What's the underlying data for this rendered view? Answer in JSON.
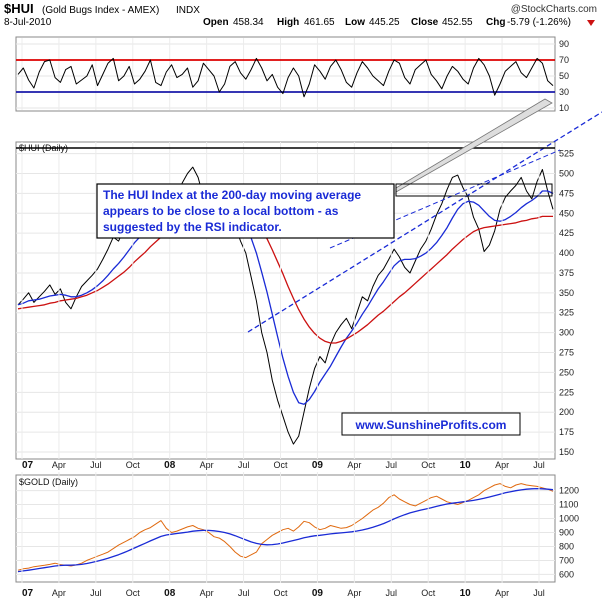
{
  "header": {
    "symbol": "$HUI",
    "name": "(Gold Bugs Index - AMEX)",
    "exchange": "INDX",
    "date": "8-Jul-2010",
    "open_label": "Open",
    "open": "458.34",
    "high_label": "High",
    "high": "461.65",
    "low_label": "Low",
    "low": "445.25",
    "close_label": "Close",
    "close": "452.55",
    "chg_label": "Chg",
    "chg": "-5.79 (-1.26%)",
    "watermark": "@StockCharts.com"
  },
  "annotation": {
    "lines": [
      "The HUI Index at the 200-day moving average",
      "appears to be close to a local bottom - as",
      "suggested by the RSI indicator."
    ]
  },
  "website": "www.SunshineProfits.com",
  "chart_data": [
    {
      "type": "line",
      "panel": "RSI",
      "yticks": [
        10,
        30,
        50,
        70,
        90
      ],
      "ylim": [
        10,
        95
      ],
      "reference_lines": [
        {
          "value": 70,
          "color": "#dd0000"
        },
        {
          "value": 30,
          "color": "#1a1aaa"
        }
      ],
      "series": [
        {
          "color": "#000000",
          "values": [
            52,
            60,
            45,
            35,
            55,
            68,
            70,
            48,
            42,
            58,
            62,
            40,
            45,
            50,
            64,
            38,
            52,
            66,
            72,
            44,
            50,
            62,
            40,
            46,
            56,
            70,
            42,
            38,
            55,
            64,
            48,
            52,
            60,
            36,
            44,
            66,
            58,
            50,
            30,
            40,
            62,
            68,
            54,
            46,
            58,
            72,
            60,
            44,
            52,
            36,
            28,
            48,
            60,
            50,
            24,
            40,
            64,
            56,
            46,
            62,
            70,
            58,
            42,
            36,
            54,
            68,
            60,
            50,
            44,
            38,
            56,
            70,
            66,
            48,
            40,
            58,
            64,
            70,
            52,
            44,
            34,
            50,
            62,
            56,
            46,
            40,
            60,
            72,
            64,
            50,
            26,
            40,
            56,
            62,
            68,
            54,
            48,
            60,
            72,
            66,
            44,
            38
          ]
        }
      ]
    },
    {
      "type": "line",
      "panel": "$HUI (Daily)",
      "title": "$HUI (Daily)",
      "x_ticks": [
        "07",
        "Apr",
        "Jul",
        "Oct",
        "08",
        "Apr",
        "Jul",
        "Oct",
        "09",
        "Apr",
        "Jul",
        "Oct",
        "10",
        "Apr",
        "Jul"
      ],
      "yticks": [
        150,
        175,
        200,
        225,
        250,
        275,
        300,
        325,
        350,
        375,
        400,
        425,
        450,
        475,
        500,
        525
      ],
      "ylim": [
        145,
        532
      ],
      "series": [
        {
          "color": "#000000",
          "values": [
            335,
            342,
            350,
            338,
            345,
            352,
            360,
            348,
            355,
            338,
            330,
            345,
            358,
            365,
            372,
            380,
            392,
            405,
            420,
            415,
            430,
            445,
            455,
            448,
            460,
            472,
            485,
            478,
            462,
            455,
            470,
            488,
            500,
            508,
            495,
            470,
            455,
            462,
            480,
            470,
            455,
            435,
            415,
            400,
            370,
            340,
            300,
            275,
            240,
            215,
            195,
            175,
            160,
            170,
            200,
            230,
            255,
            270,
            262,
            285,
            300,
            310,
            318,
            305,
            325,
            345,
            340,
            358,
            372,
            380,
            392,
            405,
            395,
            382,
            375,
            390,
            405,
            415,
            430,
            448,
            462,
            480,
            495,
            498,
            482,
            470,
            445,
            430,
            402,
            410,
            428,
            455,
            470,
            478,
            485,
            495,
            478,
            468,
            490,
            505,
            478,
            455
          ]
        },
        {
          "color": "#1a2bd6",
          "values": [
            335,
            337,
            340,
            341,
            342,
            344,
            346,
            347,
            348,
            347,
            345,
            345,
            347,
            350,
            354,
            359,
            365,
            372,
            380,
            387,
            395,
            404,
            413,
            420,
            428,
            435,
            443,
            450,
            453,
            456,
            460,
            465,
            471,
            477,
            481,
            481,
            479,
            477,
            476,
            474,
            469,
            461,
            450,
            436,
            419,
            400,
            376,
            351,
            323,
            295,
            268,
            245,
            225,
            212,
            210,
            216,
            226,
            238,
            248,
            258,
            270,
            282,
            293,
            302,
            312,
            323,
            333,
            344,
            355,
            364,
            374,
            384,
            390,
            392,
            392,
            393,
            396,
            400,
            406,
            413,
            422,
            432,
            444,
            455,
            462,
            465,
            464,
            460,
            453,
            446,
            441,
            440,
            442,
            446,
            451,
            457,
            462,
            466,
            471,
            478,
            478,
            475
          ]
        },
        {
          "color": "#cc1111",
          "values": [
            330,
            331,
            332,
            333,
            334,
            335,
            337,
            338,
            340,
            341,
            342,
            343,
            345,
            347,
            350,
            353,
            357,
            361,
            366,
            371,
            376,
            382,
            389,
            395,
            401,
            408,
            414,
            420,
            425,
            430,
            435,
            440,
            444,
            449,
            453,
            456,
            459,
            461,
            463,
            464,
            464,
            462,
            459,
            454,
            448,
            440,
            430,
            418,
            404,
            389,
            374,
            358,
            343,
            329,
            317,
            307,
            299,
            293,
            289,
            287,
            287,
            289,
            292,
            296,
            300,
            305,
            310,
            316,
            322,
            327,
            333,
            339,
            345,
            350,
            356,
            362,
            368,
            374,
            380,
            386,
            392,
            398,
            405,
            411,
            417,
            422,
            427,
            430,
            432,
            433,
            434,
            435,
            436,
            437,
            438,
            440,
            441,
            443,
            444,
            446,
            446,
            446
          ]
        }
      ]
    },
    {
      "type": "line",
      "panel": "$GOLD (Daily)",
      "title": "$GOLD (Daily)",
      "x_ticks": [
        "07",
        "Apr",
        "Jul",
        "Oct",
        "08",
        "Apr",
        "Jul",
        "Oct",
        "09",
        "Apr",
        "Jul",
        "Oct",
        "10",
        "Apr",
        "Jul"
      ],
      "yticks": [
        600,
        700,
        800,
        900,
        1000,
        1100,
        1200
      ],
      "ylim": [
        560,
        1290
      ],
      "series": [
        {
          "color": "#e06a10",
          "values": [
            630,
            640,
            645,
            655,
            660,
            665,
            672,
            680,
            670,
            665,
            660,
            668,
            680,
            700,
            715,
            730,
            745,
            760,
            785,
            810,
            830,
            850,
            870,
            900,
            920,
            935,
            960,
            985,
            930,
            900,
            910,
            925,
            940,
            950,
            930,
            920,
            900,
            870,
            860,
            835,
            800,
            760,
            730,
            720,
            740,
            760,
            820,
            850,
            880,
            900,
            920,
            930,
            910,
            940,
            980,
            970,
            940,
            920,
            930,
            950,
            940,
            930,
            935,
            950,
            975,
            1000,
            1030,
            1060,
            1080,
            1110,
            1150,
            1170,
            1140,
            1120,
            1100,
            1090,
            1110,
            1130,
            1150,
            1160,
            1140,
            1120,
            1110,
            1100,
            1115,
            1130,
            1150,
            1170,
            1200,
            1220,
            1240,
            1250,
            1230,
            1220,
            1240,
            1250,
            1240,
            1235,
            1230,
            1220,
            1210,
            1195
          ]
        },
        {
          "color": "#1a2bd6",
          "values": [
            620,
            625,
            630,
            636,
            642,
            648,
            654,
            660,
            664,
            666,
            666,
            668,
            672,
            678,
            686,
            695,
            705,
            716,
            728,
            741,
            756,
            772,
            789,
            806,
            823,
            840,
            856,
            872,
            882,
            888,
            893,
            898,
            903,
            909,
            913,
            915,
            915,
            912,
            907,
            900,
            890,
            877,
            862,
            847,
            833,
            822,
            815,
            812,
            813,
            818,
            825,
            834,
            843,
            852,
            862,
            870,
            876,
            880,
            885,
            890,
            894,
            897,
            901,
            905,
            911,
            918,
            927,
            938,
            950,
            964,
            980,
            997,
            1013,
            1027,
            1040,
            1050,
            1060,
            1068,
            1077,
            1087,
            1096,
            1104,
            1110,
            1115,
            1120,
            1125,
            1130,
            1137,
            1145,
            1154,
            1164,
            1174,
            1184,
            1192,
            1199,
            1205,
            1210,
            1213,
            1214,
            1213,
            1210,
            1206
          ]
        }
      ]
    }
  ]
}
